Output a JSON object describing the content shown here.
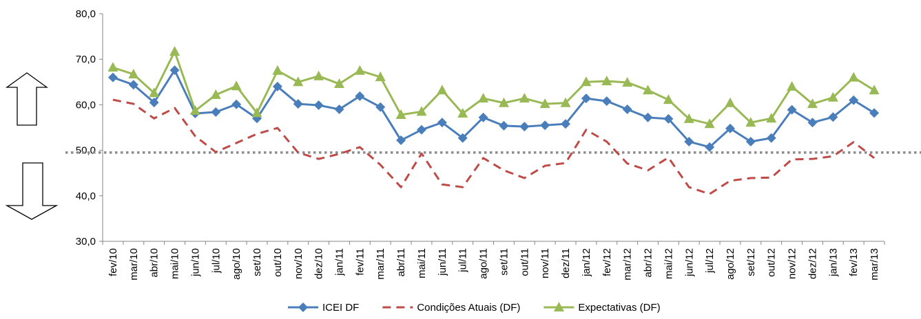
{
  "chart_data": {
    "type": "line",
    "categories": [
      "fev/10",
      "mar/10",
      "abr/10",
      "mai/10",
      "jun/10",
      "jul/10",
      "ago/10",
      "set/10",
      "out/10",
      "nov/10",
      "dez/10",
      "jan/11",
      "fev/11",
      "mar/11",
      "abr/11",
      "mai/11",
      "jun/11",
      "jul/11",
      "ago/11",
      "set/11",
      "out/11",
      "nov/11",
      "dez/11",
      "jan/12",
      "fev/12",
      "mar/12",
      "abr/12",
      "mai/12",
      "jun/12",
      "jul/12",
      "ago/12",
      "set/12",
      "out/12",
      "nov/12",
      "dez/12",
      "jan/13",
      "fev/13",
      "mar/13"
    ],
    "series": [
      {
        "name": "ICEI DF",
        "color": "#4a7ebb",
        "marker": "diamond",
        "dash": false,
        "values": [
          66.0,
          64.4,
          60.5,
          67.6,
          58.1,
          58.4,
          60.1,
          57.0,
          64.0,
          60.2,
          59.9,
          59.0,
          61.9,
          59.5,
          52.2,
          54.5,
          56.1,
          52.7,
          57.2,
          55.4,
          55.2,
          55.5,
          55.8,
          61.4,
          60.8,
          59.0,
          57.2,
          56.9,
          51.9,
          50.7,
          54.8,
          51.9,
          52.7,
          58.9,
          56.1,
          57.3,
          61.0,
          58.2
        ]
      },
      {
        "name": "Condições Atuais (DF)",
        "color": "#be4b48",
        "marker": "none",
        "dash": true,
        "values": [
          61.1,
          60.2,
          57.0,
          59.3,
          53.1,
          49.6,
          51.6,
          53.6,
          54.9,
          49.5,
          48.1,
          49.2,
          50.7,
          46.8,
          41.9,
          49.3,
          42.5,
          41.9,
          48.3,
          45.6,
          43.9,
          46.6,
          47.2,
          54.5,
          51.9,
          47.1,
          45.6,
          48.4,
          41.9,
          40.4,
          43.3,
          43.9,
          44.0,
          48.0,
          48.1,
          48.7,
          51.8,
          48.3
        ]
      },
      {
        "name": "Expectativas (DF)",
        "color": "#98b954",
        "marker": "triangle",
        "dash": false,
        "values": [
          68.2,
          66.7,
          62.6,
          71.7,
          58.7,
          62.2,
          64.1,
          58.2,
          67.5,
          65.0,
          66.3,
          64.6,
          67.5,
          66.1,
          57.8,
          58.5,
          63.2,
          58.1,
          61.4,
          60.4,
          61.4,
          60.2,
          60.4,
          65.0,
          65.2,
          64.9,
          63.2,
          61.1,
          56.9,
          55.8,
          60.4,
          56.1,
          57.0,
          64.0,
          60.2,
          61.6,
          66.0,
          63.2
        ]
      }
    ],
    "ylim": [
      30,
      80
    ],
    "yticks": [
      {
        "value": 30,
        "label": "30,0"
      },
      {
        "value": 40,
        "label": "40,0"
      },
      {
        "value": 50,
        "label": "50,0"
      },
      {
        "value": 60,
        "label": "60,0"
      },
      {
        "value": 70,
        "label": "70,0"
      },
      {
        "value": 80,
        "label": "80,0"
      }
    ],
    "reference_line": 49.5,
    "legend": "bottom"
  }
}
